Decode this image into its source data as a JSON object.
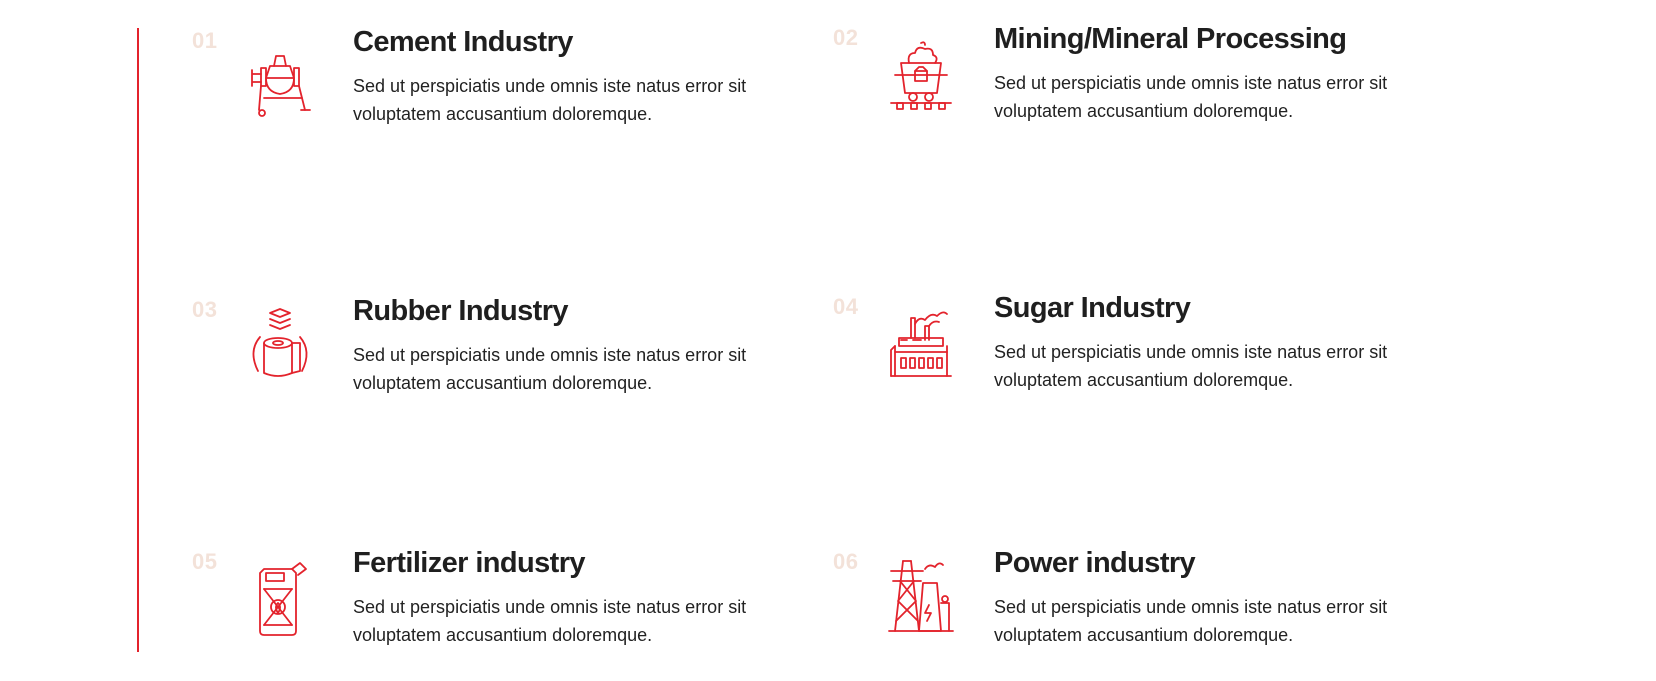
{
  "colors": {
    "accent": "#e3232c",
    "number": "#f3e2d9",
    "title": "#1f1f1f",
    "text": "#222222"
  },
  "industries": [
    {
      "number": "01",
      "title": "Cement Industry",
      "description": "Sed ut perspiciatis unde omnis iste natus error sit voluptatem accusantium doloremque.",
      "icon": "cement-mixer-icon"
    },
    {
      "number": "02",
      "title": "Mining/Mineral Processing",
      "description": "Sed ut perspiciatis unde omnis iste natus error sit voluptatem accusantium doloremque.",
      "icon": "mine-cart-icon"
    },
    {
      "number": "03",
      "title": "Rubber Industry",
      "description": "Sed ut perspiciatis unde omnis iste natus error sit voluptatem accusantium doloremque.",
      "icon": "rubber-roll-icon"
    },
    {
      "number": "04",
      "title": "Sugar Industry",
      "description": "Sed ut perspiciatis unde omnis iste natus error sit voluptatem accusantium doloremque.",
      "icon": "factory-icon"
    },
    {
      "number": "05",
      "title": "Fertilizer industry",
      "description": "Sed ut perspiciatis unde omnis iste natus error sit voluptatem accusantium doloremque.",
      "icon": "fertilizer-canister-icon"
    },
    {
      "number": "06",
      "title": "Power industry",
      "description": "Sed ut perspiciatis unde omnis iste natus error sit voluptatem accusantium doloremque.",
      "icon": "power-plant-icon"
    }
  ]
}
